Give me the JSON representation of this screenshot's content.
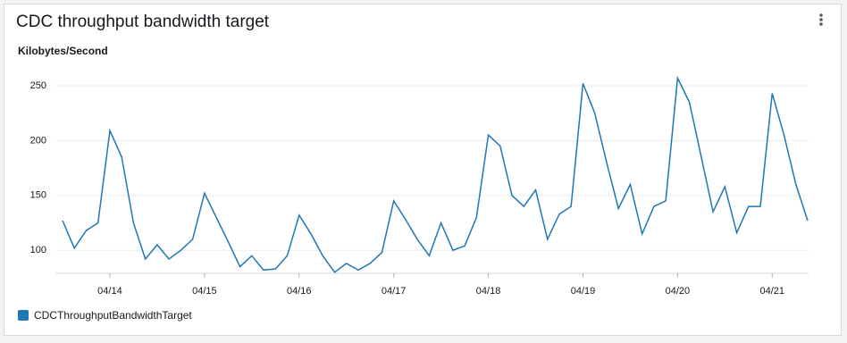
{
  "chart_data": {
    "type": "line",
    "title": "CDC throughput bandwidth target",
    "y_label": "Kilobytes/Second",
    "categories": [
      null,
      null,
      null,
      null,
      "04/14",
      null,
      null,
      null,
      null,
      null,
      null,
      null,
      "04/15",
      null,
      null,
      null,
      null,
      null,
      null,
      null,
      "04/16",
      null,
      null,
      null,
      null,
      null,
      null,
      null,
      "04/17",
      null,
      null,
      null,
      null,
      null,
      null,
      null,
      "04/18",
      null,
      null,
      null,
      null,
      null,
      null,
      null,
      "04/19",
      null,
      null,
      null,
      null,
      null,
      null,
      null,
      "04/20",
      null,
      null,
      null,
      null,
      null,
      null,
      null,
      "04/21",
      null,
      null,
      null
    ],
    "series": [
      {
        "name": "CDCThroughputBandwidthTarget",
        "color": "#1f77b4",
        "values": [
          127,
          102,
          118,
          125,
          209,
          185,
          125,
          92,
          105,
          92,
          100,
          110,
          152,
          130,
          108,
          85,
          95,
          82,
          83,
          95,
          132,
          115,
          95,
          80,
          88,
          82,
          88,
          98,
          145,
          128,
          110,
          95,
          125,
          100,
          104,
          130,
          205,
          195,
          150,
          140,
          155,
          110,
          133,
          140,
          252,
          225,
          180,
          138,
          160,
          115,
          140,
          145,
          257,
          235,
          185,
          135,
          158,
          116,
          140,
          140,
          243,
          205,
          160,
          127
        ]
      }
    ],
    "ylim": [
      79,
      263
    ],
    "yticks": [
      100,
      150,
      200,
      250
    ],
    "grid": true
  }
}
